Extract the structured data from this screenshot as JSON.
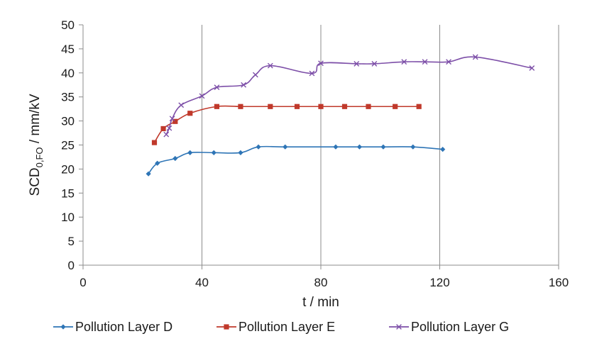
{
  "chart_data": {
    "type": "line",
    "xlabel": "t / min",
    "ylabel": {
      "main": "SCD",
      "sub": "0,FO",
      "tail": "  / mm/kV"
    },
    "xlim": [
      0,
      160
    ],
    "ylim": [
      0,
      50
    ],
    "xticks": [
      0,
      40,
      80,
      120,
      160
    ],
    "yticks": [
      0,
      5,
      10,
      15,
      20,
      25,
      30,
      35,
      40,
      45,
      50
    ],
    "grid": "vertical",
    "legend_position": "bottom",
    "series": [
      {
        "name": "Pollution Layer D",
        "color": "#2e75b6",
        "marker": "diamond",
        "points": [
          [
            22,
            19.0
          ],
          [
            25,
            21.2
          ],
          [
            31,
            22.2
          ],
          [
            36,
            23.4
          ],
          [
            44,
            23.4
          ],
          [
            53,
            23.4
          ],
          [
            59,
            24.6
          ],
          [
            68,
            24.6
          ],
          [
            85,
            24.6
          ],
          [
            93,
            24.6
          ],
          [
            101,
            24.6
          ],
          [
            111,
            24.6
          ],
          [
            121,
            24.1
          ]
        ]
      },
      {
        "name": "Pollution Layer E",
        "color": "#c0392b",
        "marker": "square",
        "points": [
          [
            24,
            25.5
          ],
          [
            27,
            28.4
          ],
          [
            31,
            29.9
          ],
          [
            36,
            31.6
          ],
          [
            45,
            33.0
          ],
          [
            53,
            33.0
          ],
          [
            63,
            33.0
          ],
          [
            72,
            33.0
          ],
          [
            80,
            33.0
          ],
          [
            88,
            33.0
          ],
          [
            96,
            33.0
          ],
          [
            105,
            33.0
          ],
          [
            113,
            33.0
          ]
        ]
      },
      {
        "name": "Pollution Layer G",
        "color": "#7d4fa8",
        "marker": "x",
        "points": [
          [
            28,
            27.2
          ],
          [
            29,
            28.5
          ],
          [
            30,
            30.5
          ],
          [
            33,
            33.3
          ],
          [
            40,
            35.2
          ],
          [
            45,
            37.0
          ],
          [
            54,
            37.5
          ],
          [
            58,
            39.6
          ],
          [
            63,
            41.5
          ],
          [
            77,
            39.9
          ],
          [
            80,
            42.0
          ],
          [
            92,
            41.9
          ],
          [
            98,
            41.9
          ],
          [
            108,
            42.3
          ],
          [
            115,
            42.3
          ],
          [
            123,
            42.3
          ],
          [
            132,
            43.3
          ],
          [
            151,
            41.0
          ]
        ]
      }
    ]
  }
}
